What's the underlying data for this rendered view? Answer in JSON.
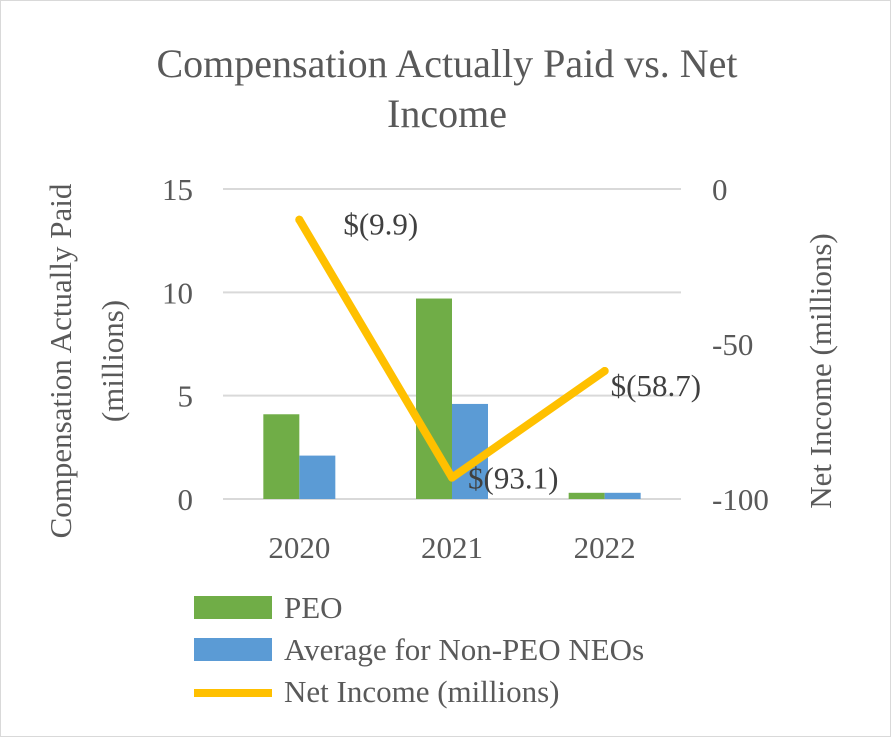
{
  "chart_data": {
    "type": "bar+line",
    "title_lines": [
      "Compensation Actually Paid vs. Net",
      "Income"
    ],
    "categories": [
      "2020",
      "2021",
      "2022"
    ],
    "series": [
      {
        "name": "PEO",
        "kind": "bar",
        "axis": "left",
        "color": "#70ad47",
        "values": [
          4.1,
          9.7,
          0.3
        ]
      },
      {
        "name": "Average for Non-PEO NEOs",
        "kind": "bar",
        "axis": "left",
        "color": "#5b9bd5",
        "values": [
          2.1,
          4.6,
          0.3
        ]
      },
      {
        "name": "Net Income (millions)",
        "kind": "line",
        "axis": "right",
        "color": "#ffc000",
        "values": [
          -9.9,
          -93.1,
          -58.7
        ],
        "data_labels": [
          "$(9.9)",
          "$(93.1)",
          "$(58.7)"
        ]
      }
    ],
    "left_axis": {
      "title_lines": [
        "Compensation Actually Paid",
        "(millions)"
      ],
      "ylim": [
        0,
        15
      ],
      "ticks": [
        "0",
        "5",
        "10",
        "15"
      ],
      "tick_values": [
        0,
        5,
        10,
        15
      ]
    },
    "right_axis": {
      "title": "Net Income (millions)",
      "ylim": [
        -100,
        0
      ],
      "ticks": [
        "-100",
        "-50",
        "0"
      ],
      "tick_values": [
        -100,
        -50,
        0
      ]
    },
    "legend": [
      "PEO",
      "Average for Non-PEO NEOs",
      "Net Income (millions)"
    ],
    "grid": true
  }
}
